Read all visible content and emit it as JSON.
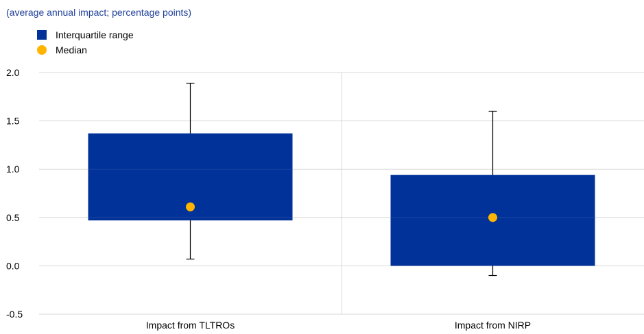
{
  "subtitle": "(average annual impact; percentage points)",
  "legend": {
    "items": [
      {
        "label": "Interquartile range",
        "shape": "square",
        "color": "#003299"
      },
      {
        "label": "Median",
        "shape": "circle",
        "color": "#ffb400"
      }
    ]
  },
  "chart_data": {
    "type": "box",
    "title": "",
    "xlabel": "",
    "ylabel": "",
    "ylim": [
      -0.5,
      2.0
    ],
    "yticks": [
      -0.5,
      0.0,
      0.5,
      1.0,
      1.5,
      2.0
    ],
    "ytick_labels": [
      "-0.5",
      "0.0",
      "0.5",
      "1.0",
      "1.5",
      "2.0"
    ],
    "grid": true,
    "legend_position": "top-left",
    "colors": {
      "box": "#003299",
      "median": "#ffb400",
      "whisker": "#000000",
      "grid": "#d9d9d9"
    },
    "categories": [
      "Impact from TLTROs",
      "Impact from NIRP"
    ],
    "boxes": [
      {
        "name": "Impact from TLTROs",
        "q1": 0.47,
        "median": 0.61,
        "q3": 1.37,
        "whisker_low": 0.07,
        "whisker_high": 1.89
      },
      {
        "name": "Impact from NIRP",
        "q1": 0.0,
        "median": 0.5,
        "q3": 0.94,
        "whisker_low": -0.1,
        "whisker_high": 1.6
      }
    ]
  }
}
